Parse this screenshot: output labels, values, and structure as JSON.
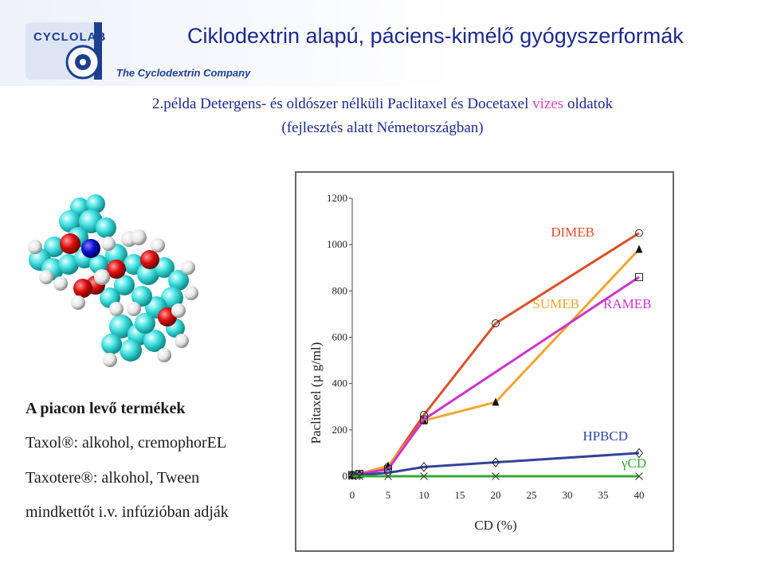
{
  "header": {
    "logo_text": "CYCLOLAB",
    "logo_tagline": "The Cyclodextrin Company",
    "title": "Ciklodextrin alapú, páciens-kimélő gyógyszerformák"
  },
  "subtitle": {
    "line1_prefix": "2.példa Detergens- és oldószer nélküli Paclitaxel és Docetaxel ",
    "line1_highlight": "vizes",
    "line1_suffix": " oldatok",
    "line2": "(fejlesztés alatt Németországban)"
  },
  "notes": {
    "heading": "A piacon levő termékek",
    "taxol": "Taxol®: alkohol, cremophorEL",
    "taxotere": "Taxotere®: alkohol, Tween",
    "infusion": "mindkettőt i.v. infúzióban adják"
  },
  "colors": {
    "title": "#1b2a8c",
    "highlight": "#e040c0",
    "dimeb": "#d9502a",
    "sumeb": "#f0a530",
    "rameb": "#cc33cc",
    "hpbcd": "#334499",
    "gcd": "#33aa33"
  },
  "chart_data": {
    "type": "line",
    "xlabel": "CD (%)",
    "ylabel": "Paclitaxel (µ g/ml)",
    "xlim": [
      0,
      40
    ],
    "ylim": [
      0,
      1200
    ],
    "x_ticks": [
      0,
      5,
      10,
      15,
      20,
      25,
      30,
      35,
      40
    ],
    "y_ticks": [
      0,
      200,
      400,
      600,
      800,
      1000,
      1200
    ],
    "grid": false,
    "series": [
      {
        "name": "DIMEB",
        "color": "#d9502a",
        "marker": "circle",
        "x": [
          0,
          1,
          5,
          10,
          20,
          40
        ],
        "y": [
          5,
          10,
          40,
          265,
          660,
          1050
        ]
      },
      {
        "name": "SUMEB",
        "color": "#f0a530",
        "marker": "triangle",
        "x": [
          0,
          1,
          5,
          10,
          20,
          40
        ],
        "y": [
          5,
          10,
          45,
          240,
          320,
          980
        ]
      },
      {
        "name": "RAMEB",
        "color": "#cc33cc",
        "marker": "square",
        "x": [
          0,
          1,
          5,
          10,
          40
        ],
        "y": [
          5,
          10,
          30,
          245,
          860
        ]
      },
      {
        "name": "HPBCD",
        "color": "#334499",
        "marker": "diamond",
        "x": [
          0,
          1,
          5,
          10,
          20,
          40
        ],
        "y": [
          5,
          5,
          15,
          40,
          60,
          100
        ]
      },
      {
        "name": "γCD",
        "color": "#33aa33",
        "marker": "star",
        "x": [
          0,
          1,
          5,
          10,
          20,
          40
        ],
        "y": [
          0,
          0,
          0,
          0,
          0,
          0
        ]
      }
    ]
  }
}
